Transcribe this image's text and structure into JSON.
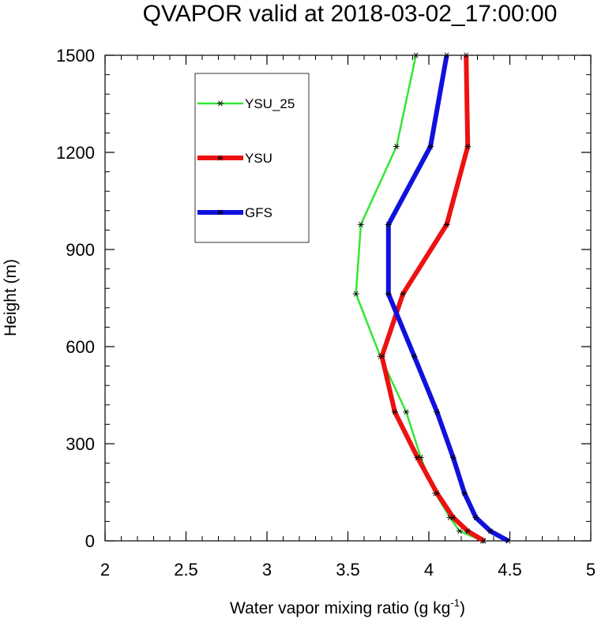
{
  "chart_data": {
    "type": "line",
    "title": "QVAPOR valid at 2018-03-02_17:00:00",
    "xlabel": "Water vapor mixing ratio (g kg",
    "xlabel_sup": "-1",
    "xlabel_tail": ")",
    "ylabel": "Height (m)",
    "xlim": [
      2,
      5
    ],
    "ylim": [
      0,
      1500
    ],
    "x_ticks": [
      2,
      2.5,
      3,
      3.5,
      4,
      4.5,
      5
    ],
    "x_tick_labels": [
      "2",
      "2.5",
      "3",
      "3.5",
      "4",
      "4.5",
      "5"
    ],
    "y_ticks": [
      0,
      300,
      600,
      900,
      1200,
      1500
    ],
    "y_tick_labels": [
      "0",
      "300",
      "600",
      "900",
      "1200",
      "1500"
    ],
    "legend_position": "top-left",
    "series": [
      {
        "name": "YSU_25",
        "color": "#33e633",
        "width": 2.5,
        "points": [
          [
            4.33,
            0
          ],
          [
            4.19,
            30
          ],
          [
            4.13,
            72
          ],
          [
            4.04,
            147
          ],
          [
            3.95,
            257
          ],
          [
            3.86,
            398
          ],
          [
            3.7,
            570
          ],
          [
            3.55,
            763
          ],
          [
            3.58,
            977
          ],
          [
            3.8,
            1218
          ],
          [
            3.92,
            1500
          ]
        ]
      },
      {
        "name": "YSU",
        "color": "#ee1111",
        "width": 6,
        "points": [
          [
            4.34,
            0
          ],
          [
            4.24,
            30
          ],
          [
            4.15,
            72
          ],
          [
            4.05,
            147
          ],
          [
            3.93,
            257
          ],
          [
            3.79,
            398
          ],
          [
            3.71,
            570
          ],
          [
            3.84,
            763
          ],
          [
            4.11,
            977
          ],
          [
            4.24,
            1218
          ],
          [
            4.23,
            1500
          ]
        ]
      },
      {
        "name": "GFS",
        "color": "#1111dd",
        "width": 6,
        "points": [
          [
            4.49,
            0
          ],
          [
            4.38,
            30
          ],
          [
            4.29,
            72
          ],
          [
            4.22,
            147
          ],
          [
            4.15,
            257
          ],
          [
            4.05,
            398
          ],
          [
            3.91,
            570
          ],
          [
            3.75,
            763
          ],
          [
            3.75,
            977
          ],
          [
            4.01,
            1218
          ],
          [
            4.11,
            1500
          ]
        ]
      }
    ]
  }
}
